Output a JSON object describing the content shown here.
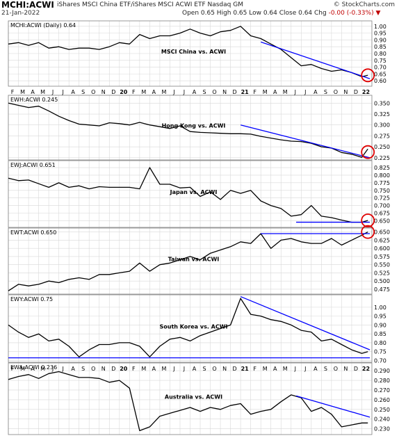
{
  "header": {
    "symbol": "MCHI:ACWI",
    "name": "iShares MSCI China ETF/iShares MSCI ACWI ETF  Nasdaq GM",
    "date": "21-Jan-2022",
    "ohlc_prefix": "Open 0.65  High 0.65  Low 0.64  Close 0.64  Chg ",
    "change": "-0.00 (-0.33%)",
    "credit": "© StockCharts.com"
  },
  "colors": {
    "price_line": "#000000",
    "trend_line": "#0000ff",
    "circle": "#e00000",
    "grid": "#d8d8d8",
    "border": "#808080"
  },
  "x_axis": {
    "tick_labels": [
      "F",
      "M",
      "A",
      "M",
      "J",
      "J",
      "A",
      "S",
      "O",
      "N",
      "D",
      "20",
      "F",
      "M",
      "A",
      "M",
      "J",
      "J",
      "A",
      "S",
      "O",
      "N",
      "D",
      "21",
      "F",
      "M",
      "A",
      "M",
      "J",
      "J",
      "A",
      "S",
      "O",
      "N",
      "D",
      "22"
    ],
    "year_labels": [
      "20",
      "21",
      "22"
    ]
  },
  "chart_data": [
    {
      "type": "line",
      "legend": "MCHI:ACWI (Daily) 0.64",
      "annotation": "MSCI China vs. ACWI",
      "ylim": [
        0.56,
        1.04
      ],
      "y_ticks": [
        0.6,
        0.65,
        0.7,
        0.75,
        0.8,
        0.85,
        0.9,
        0.95,
        1.0
      ],
      "y_tick_labels": [
        "0.60",
        "0.65",
        "0.70",
        "0.75",
        "0.80",
        "0.85",
        "0.90",
        "0.95",
        "1.00"
      ],
      "x_range": [
        0,
        36
      ],
      "series": [
        {
          "x": [
            0,
            1,
            2,
            3,
            4,
            5,
            6,
            7,
            8,
            9,
            10,
            11,
            12,
            13,
            14,
            15,
            16,
            17,
            18,
            19,
            20,
            21,
            22,
            23,
            24,
            25,
            26,
            27,
            28,
            29,
            30,
            31,
            32,
            33,
            34,
            35,
            35.6
          ],
          "y": [
            0.87,
            0.88,
            0.86,
            0.88,
            0.84,
            0.85,
            0.83,
            0.84,
            0.84,
            0.83,
            0.85,
            0.88,
            0.87,
            0.94,
            0.91,
            0.93,
            0.93,
            0.95,
            0.98,
            0.95,
            0.93,
            0.96,
            0.97,
            1.0,
            0.93,
            0.91,
            0.87,
            0.83,
            0.77,
            0.71,
            0.72,
            0.69,
            0.67,
            0.68,
            0.66,
            0.63,
            0.64
          ]
        }
      ],
      "trend_lines": [
        {
          "x": [
            25,
            35.8
          ],
          "y": [
            0.885,
            0.615
          ]
        }
      ],
      "circle": {
        "x": 35.6,
        "y": 0.64
      }
    },
    {
      "type": "line",
      "legend": "EWH:ACWI 0.245",
      "annotation": "Hong Kong vs. ACWI",
      "ylim": [
        0.22,
        0.368
      ],
      "y_ticks": [
        0.225,
        0.25,
        0.275,
        0.3,
        0.325,
        0.35
      ],
      "y_tick_labels": [
        "0.225",
        "0.250",
        "0.275",
        "0.300",
        "0.325",
        "0.350"
      ],
      "x_range": [
        0,
        36
      ],
      "series": [
        {
          "x": [
            0,
            1,
            2,
            3,
            4,
            5,
            6,
            7,
            8,
            9,
            10,
            11,
            12,
            13,
            14,
            15,
            16,
            17,
            18,
            19,
            20,
            21,
            22,
            23,
            24,
            25,
            26,
            27,
            28,
            29,
            30,
            31,
            32,
            33,
            34,
            35,
            35.6
          ],
          "y": [
            0.35,
            0.345,
            0.34,
            0.343,
            0.332,
            0.32,
            0.31,
            0.302,
            0.3,
            0.298,
            0.305,
            0.303,
            0.3,
            0.306,
            0.3,
            0.296,
            0.292,
            0.298,
            0.285,
            0.283,
            0.282,
            0.281,
            0.28,
            0.28,
            0.279,
            0.274,
            0.27,
            0.266,
            0.263,
            0.262,
            0.258,
            0.25,
            0.247,
            0.237,
            0.233,
            0.226,
            0.245
          ]
        }
      ],
      "trend_lines": [
        {
          "x": [
            23,
            35.8
          ],
          "y": [
            0.3,
            0.225
          ]
        }
      ],
      "circle": {
        "x": 35.6,
        "y": 0.238
      }
    },
    {
      "type": "line",
      "legend": "EWJ:ACWI 0.651",
      "annotation": "Japan vs. ACWI",
      "ylim": [
        0.628,
        0.848
      ],
      "y_ticks": [
        0.65,
        0.675,
        0.7,
        0.725,
        0.75,
        0.775,
        0.8,
        0.825
      ],
      "y_tick_labels": [
        "0.650",
        "0.675",
        "0.700",
        "0.725",
        "0.750",
        "0.775",
        "0.800",
        "0.825"
      ],
      "x_range": [
        0,
        36
      ],
      "series": [
        {
          "x": [
            0,
            1,
            2,
            3,
            4,
            5,
            6,
            7,
            8,
            9,
            10,
            11,
            12,
            13,
            14,
            15,
            16,
            17,
            18,
            19,
            20,
            21,
            22,
            23,
            24,
            25,
            26,
            27,
            28,
            29,
            30,
            31,
            32,
            33,
            34,
            35,
            35.6
          ],
          "y": [
            0.79,
            0.782,
            0.784,
            0.772,
            0.76,
            0.775,
            0.76,
            0.765,
            0.755,
            0.762,
            0.76,
            0.76,
            0.76,
            0.755,
            0.825,
            0.77,
            0.77,
            0.758,
            0.76,
            0.73,
            0.745,
            0.72,
            0.75,
            0.74,
            0.75,
            0.715,
            0.7,
            0.69,
            0.665,
            0.67,
            0.7,
            0.665,
            0.66,
            0.652,
            0.645,
            0.645,
            0.651
          ]
        }
      ],
      "trend_lines": [
        {
          "x": [
            28.5,
            35.8
          ],
          "y": [
            0.645,
            0.645
          ]
        }
      ],
      "circle": {
        "x": 35.6,
        "y": 0.651
      }
    },
    {
      "type": "line",
      "legend": "EWT:ACWI 0.650",
      "annotation": "Taiwan vs. ACWI",
      "ylim": [
        0.46,
        0.662
      ],
      "y_ticks": [
        0.475,
        0.5,
        0.525,
        0.55,
        0.575,
        0.6,
        0.625,
        0.65
      ],
      "y_tick_labels": [
        "0.475",
        "0.500",
        "0.525",
        "0.550",
        "0.575",
        "0.600",
        "0.625",
        "0.650"
      ],
      "x_range": [
        0,
        36
      ],
      "series": [
        {
          "x": [
            0,
            1,
            2,
            3,
            4,
            5,
            6,
            7,
            8,
            9,
            10,
            11,
            12,
            13,
            14,
            15,
            16,
            17,
            18,
            19,
            20,
            21,
            22,
            23,
            24,
            25,
            26,
            27,
            28,
            29,
            30,
            31,
            32,
            33,
            34,
            35,
            35.6
          ],
          "y": [
            0.47,
            0.49,
            0.485,
            0.49,
            0.5,
            0.495,
            0.505,
            0.51,
            0.505,
            0.52,
            0.52,
            0.525,
            0.53,
            0.555,
            0.53,
            0.55,
            0.555,
            0.565,
            0.575,
            0.565,
            0.585,
            0.595,
            0.605,
            0.62,
            0.615,
            0.645,
            0.6,
            0.625,
            0.63,
            0.62,
            0.615,
            0.615,
            0.63,
            0.61,
            0.625,
            0.64,
            0.65
          ]
        }
      ],
      "trend_lines": [
        {
          "x": [
            25,
            35.8
          ],
          "y": [
            0.645,
            0.645
          ]
        }
      ],
      "circle": {
        "x": 35.6,
        "y": 0.65
      }
    },
    {
      "type": "line",
      "legend": "EWY:ACWI 0.75",
      "annotation": "South Korea vs. ACWI",
      "ylim": [
        0.69,
        1.07
      ],
      "y_ticks": [
        0.7,
        0.75,
        0.8,
        0.85,
        0.9,
        0.95,
        1.0
      ],
      "y_tick_labels": [
        "0.70",
        "0.75",
        "0.80",
        "0.85",
        "0.90",
        "0.95",
        "1.00"
      ],
      "x_range": [
        0,
        36
      ],
      "series": [
        {
          "x": [
            0,
            1,
            2,
            3,
            4,
            5,
            6,
            7,
            8,
            9,
            10,
            11,
            12,
            13,
            14,
            15,
            16,
            17,
            18,
            19,
            20,
            21,
            22,
            23,
            24,
            25,
            26,
            27,
            28,
            29,
            30,
            31,
            32,
            33,
            34,
            35,
            35.6
          ],
          "y": [
            0.9,
            0.86,
            0.83,
            0.85,
            0.81,
            0.82,
            0.78,
            0.72,
            0.76,
            0.79,
            0.79,
            0.8,
            0.8,
            0.78,
            0.72,
            0.78,
            0.82,
            0.83,
            0.81,
            0.84,
            0.86,
            0.88,
            0.9,
            1.05,
            0.96,
            0.95,
            0.93,
            0.92,
            0.9,
            0.87,
            0.86,
            0.81,
            0.82,
            0.79,
            0.76,
            0.74,
            0.75
          ]
        }
      ],
      "trend_lines": [
        {
          "x": [
            23,
            35.8
          ],
          "y": [
            1.06,
            0.76
          ]
        },
        {
          "x": [
            0,
            35.8
          ],
          "y": [
            0.715,
            0.715
          ]
        }
      ],
      "circle": null
    },
    {
      "type": "line",
      "legend": "EWA:ACWI 0.236",
      "annotation": "Australia vs. ACWI",
      "ylim": [
        0.224,
        0.298
      ],
      "y_ticks": [
        0.23,
        0.24,
        0.25,
        0.26,
        0.27,
        0.28,
        0.29
      ],
      "y_tick_labels": [
        "0.230",
        "0.240",
        "0.250",
        "0.260",
        "0.270",
        "0.280",
        "0.290"
      ],
      "x_range": [
        0,
        36
      ],
      "series": [
        {
          "x": [
            0,
            1,
            2,
            3,
            4,
            5,
            6,
            7,
            8,
            9,
            10,
            11,
            12,
            13,
            14,
            15,
            16,
            17,
            18,
            19,
            20,
            21,
            22,
            23,
            24,
            25,
            26,
            27,
            28,
            29,
            30,
            31,
            32,
            33,
            34,
            35,
            35.6
          ],
          "y": [
            0.281,
            0.284,
            0.286,
            0.282,
            0.287,
            0.289,
            0.286,
            0.283,
            0.283,
            0.282,
            0.278,
            0.28,
            0.272,
            0.228,
            0.232,
            0.243,
            0.246,
            0.249,
            0.252,
            0.248,
            0.252,
            0.25,
            0.254,
            0.256,
            0.245,
            0.248,
            0.25,
            0.258,
            0.265,
            0.262,
            0.248,
            0.252,
            0.245,
            0.232,
            0.234,
            0.236,
            0.236
          ]
        }
      ],
      "trend_lines": [
        {
          "x": [
            28.5,
            35.8
          ],
          "y": [
            0.264,
            0.242
          ]
        }
      ],
      "circle": null
    }
  ]
}
